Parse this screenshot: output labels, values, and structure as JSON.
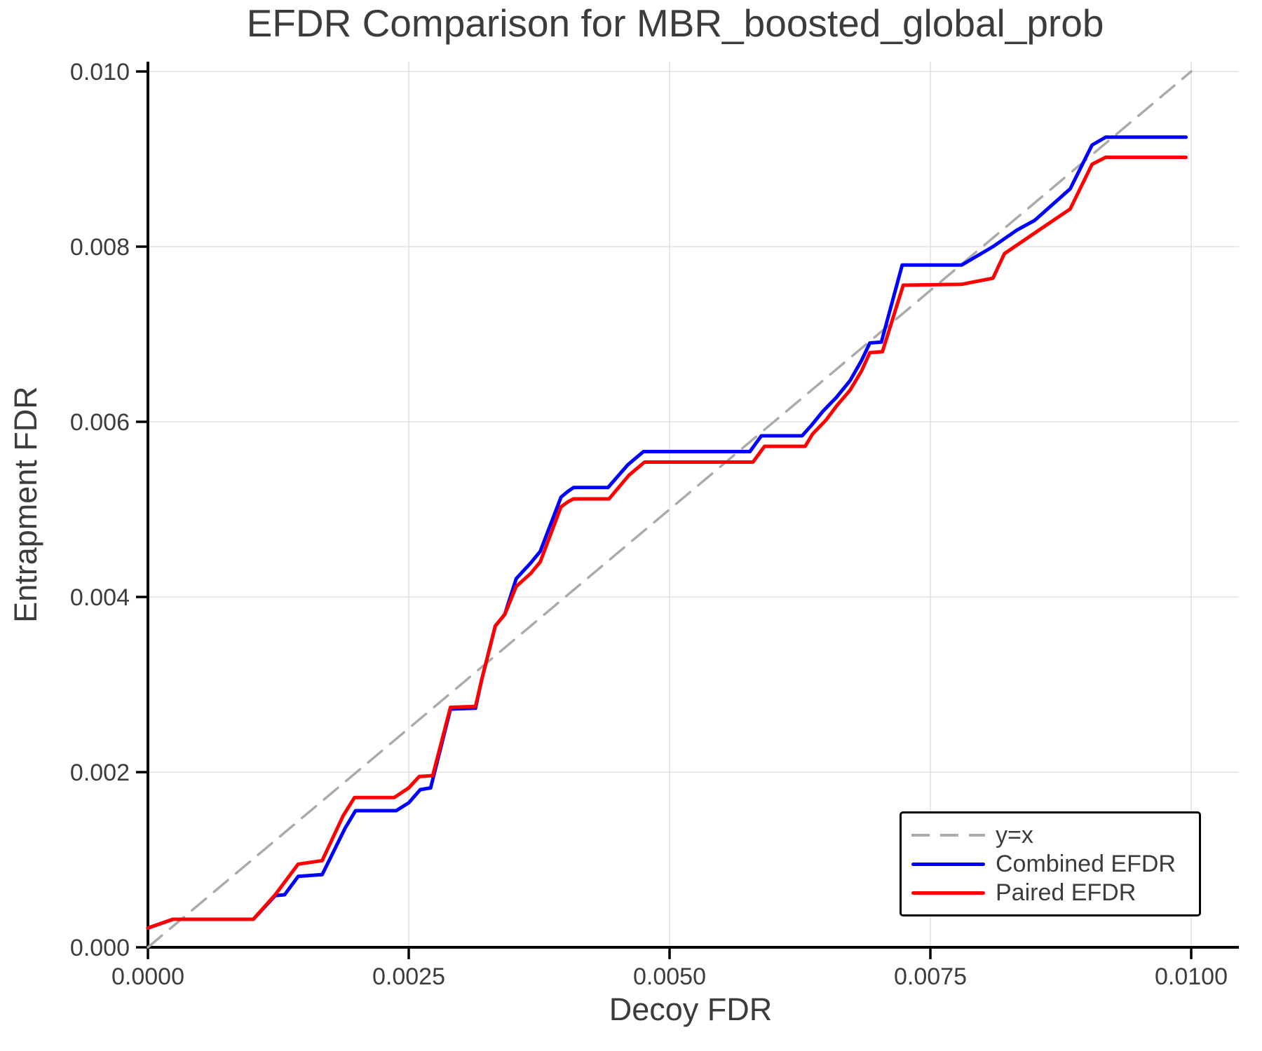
{
  "title": "EFDR Comparison for MBR_boosted_global_prob",
  "axes": {
    "x_label": "Decoy FDR",
    "y_label": "Entrapment FDR",
    "x_ticks": [
      {
        "value": 0.0,
        "label": "0.0000"
      },
      {
        "value": 0.0025,
        "label": "0.0025"
      },
      {
        "value": 0.005,
        "label": "0.0050"
      },
      {
        "value": 0.0075,
        "label": "0.0075"
      },
      {
        "value": 0.01,
        "label": "0.0100"
      }
    ],
    "y_ticks": [
      {
        "value": 0.0,
        "label": "0.000"
      },
      {
        "value": 0.002,
        "label": "0.002"
      },
      {
        "value": 0.004,
        "label": "0.004"
      },
      {
        "value": 0.006,
        "label": "0.006"
      },
      {
        "value": 0.008,
        "label": "0.008"
      },
      {
        "value": 0.01,
        "label": "0.010"
      }
    ]
  },
  "colors": {
    "text": "#3c3c3c",
    "grid": "#e3e3e3",
    "spine": "#000000",
    "identity": "#ababab",
    "combined": "#0000ff",
    "paired": "#ff0000"
  },
  "legend": {
    "items": [
      {
        "label": "y=x",
        "style": "dashed",
        "color": "#ababab"
      },
      {
        "label": "Combined EFDR",
        "style": "solid",
        "color": "#0000ff"
      },
      {
        "label": "Paired EFDR",
        "style": "solid",
        "color": "#ff0000"
      }
    ],
    "position": "lower right"
  },
  "chart_data": {
    "type": "line",
    "title": "EFDR Comparison for MBR_boosted_global_prob",
    "xlabel": "Decoy FDR",
    "ylabel": "Entrapment FDR",
    "xlim": [
      0.0,
      0.010457
    ],
    "ylim": [
      0.0,
      0.010112
    ],
    "grid": true,
    "legend_position": "lower right",
    "series": [
      {
        "name": "y=x",
        "data_name": "identity-line",
        "color": "#ababab",
        "width": 3.5,
        "dash": "26 15",
        "points": [
          [
            0.0,
            0.0
          ],
          [
            0.01,
            0.01
          ]
        ]
      },
      {
        "name": "Combined EFDR",
        "data_name": "combined-efdr-line",
        "color": "#0000ff",
        "width": 5,
        "dash": "",
        "points": [
          [
            0.0,
            0.00022
          ],
          [
            0.00024,
            0.00032
          ],
          [
            0.00101,
            0.00032
          ],
          [
            0.00122,
            0.00059
          ],
          [
            0.00131,
            0.0006
          ],
          [
            0.00144,
            0.00081
          ],
          [
            0.00167,
            0.00083
          ],
          [
            0.00189,
            0.00136
          ],
          [
            0.00199,
            0.00156
          ],
          [
            0.00238,
            0.00156
          ],
          [
            0.0025,
            0.00165
          ],
          [
            0.00261,
            0.0018
          ],
          [
            0.00271,
            0.00182
          ],
          [
            0.0029,
            0.00272
          ],
          [
            0.00314,
            0.00273
          ],
          [
            0.0032,
            0.00306
          ],
          [
            0.00333,
            0.00367
          ],
          [
            0.00342,
            0.0038
          ],
          [
            0.00353,
            0.00421
          ],
          [
            0.00367,
            0.00439
          ],
          [
            0.00376,
            0.00452
          ],
          [
            0.00396,
            0.00514
          ],
          [
            0.00403,
            0.00521
          ],
          [
            0.00408,
            0.00525
          ],
          [
            0.00441,
            0.00525
          ],
          [
            0.0046,
            0.00551
          ],
          [
            0.00475,
            0.00566
          ],
          [
            0.00577,
            0.00566
          ],
          [
            0.00588,
            0.00584
          ],
          [
            0.00627,
            0.00584
          ],
          [
            0.00636,
            0.00596
          ],
          [
            0.00647,
            0.00612
          ],
          [
            0.0066,
            0.00628
          ],
          [
            0.00673,
            0.00647
          ],
          [
            0.00684,
            0.0067
          ],
          [
            0.00692,
            0.0069
          ],
          [
            0.00703,
            0.00691
          ],
          [
            0.00723,
            0.00779
          ],
          [
            0.0078,
            0.00779
          ],
          [
            0.0081,
            0.008
          ],
          [
            0.00833,
            0.00819
          ],
          [
            0.0085,
            0.0083
          ],
          [
            0.00884,
            0.00866
          ],
          [
            0.00905,
            0.00916
          ],
          [
            0.00918,
            0.00925
          ],
          [
            0.00995,
            0.00925
          ]
        ]
      },
      {
        "name": "Paired EFDR",
        "data_name": "paired-efdr-line",
        "color": "#ff0000",
        "width": 5,
        "dash": "",
        "points": [
          [
            0.0,
            0.00022
          ],
          [
            0.00024,
            0.00032
          ],
          [
            0.00101,
            0.00032
          ],
          [
            0.00122,
            0.0006
          ],
          [
            0.00144,
            0.00095
          ],
          [
            0.00167,
            0.00099
          ],
          [
            0.00187,
            0.0015
          ],
          [
            0.00198,
            0.00171
          ],
          [
            0.00236,
            0.00171
          ],
          [
            0.0025,
            0.00182
          ],
          [
            0.0026,
            0.00195
          ],
          [
            0.00273,
            0.00196
          ],
          [
            0.0029,
            0.00274
          ],
          [
            0.00314,
            0.00275
          ],
          [
            0.0032,
            0.00306
          ],
          [
            0.00333,
            0.00367
          ],
          [
            0.00342,
            0.0038
          ],
          [
            0.00353,
            0.00412
          ],
          [
            0.00367,
            0.00427
          ],
          [
            0.00376,
            0.0044
          ],
          [
            0.00396,
            0.00503
          ],
          [
            0.00403,
            0.00509
          ],
          [
            0.00408,
            0.00512
          ],
          [
            0.00442,
            0.00512
          ],
          [
            0.00461,
            0.00539
          ],
          [
            0.00476,
            0.00554
          ],
          [
            0.0058,
            0.00554
          ],
          [
            0.00591,
            0.00572
          ],
          [
            0.0063,
            0.00572
          ],
          [
            0.00637,
            0.00586
          ],
          [
            0.0065,
            0.00602
          ],
          [
            0.0066,
            0.00618
          ],
          [
            0.00673,
            0.00636
          ],
          [
            0.00684,
            0.00658
          ],
          [
            0.00692,
            0.00679
          ],
          [
            0.00704,
            0.0068
          ],
          [
            0.00724,
            0.00756
          ],
          [
            0.0078,
            0.00757
          ],
          [
            0.0081,
            0.00764
          ],
          [
            0.00821,
            0.00792
          ],
          [
            0.00853,
            0.00818
          ],
          [
            0.00884,
            0.00843
          ],
          [
            0.00905,
            0.00894
          ],
          [
            0.00918,
            0.00902
          ],
          [
            0.00995,
            0.00902
          ]
        ]
      }
    ]
  }
}
